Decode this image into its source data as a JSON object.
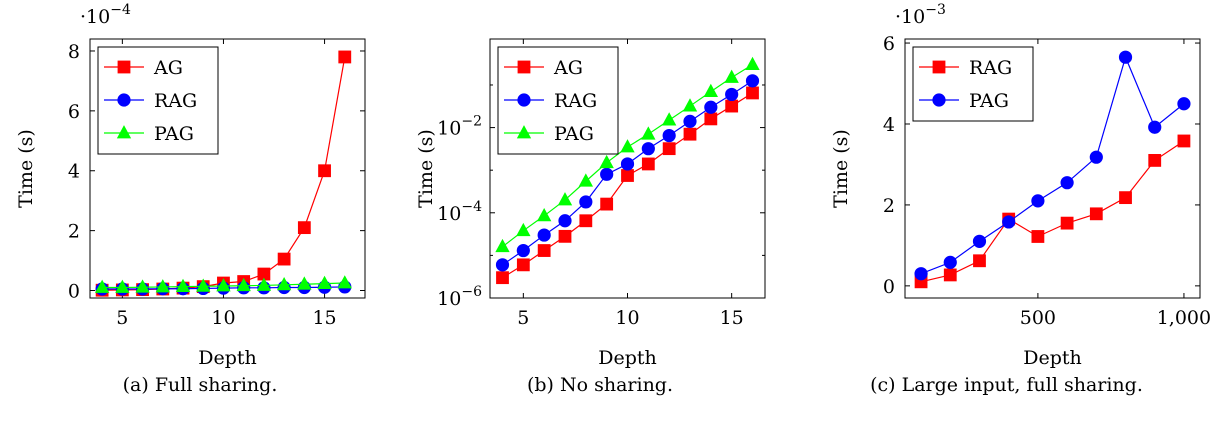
{
  "chart_data": [
    {
      "type": "line",
      "caption": "(a) Full sharing.",
      "ylabel": "Time (s)",
      "xlabel": "Depth",
      "y_multiplier": "·10",
      "y_multiplier_exp": "−4",
      "xlim": [
        3.4,
        17
      ],
      "ylim": [
        -0.25,
        8.4
      ],
      "yscale": "linear",
      "xticks": [
        5,
        10,
        15
      ],
      "xtick_labels": [
        "5",
        "10",
        "15"
      ],
      "yticks": [
        0,
        2,
        4,
        6,
        8
      ],
      "ytick_labels": [
        "0",
        "2",
        "4",
        "6",
        "8"
      ],
      "legend_position": "top-left",
      "grid": false,
      "x": [
        4,
        5,
        6,
        7,
        8,
        9,
        10,
        11,
        12,
        13,
        14,
        15,
        16
      ],
      "series": [
        {
          "name": "AG",
          "color": "#ff0000",
          "marker": "square",
          "values": [
            0.01,
            0.02,
            0.03,
            0.05,
            0.08,
            0.13,
            0.25,
            0.3,
            0.55,
            1.05,
            2.1,
            4.0,
            7.8
          ]
        },
        {
          "name": "RAG",
          "color": "#0000ff",
          "marker": "circle",
          "values": [
            0.05,
            0.05,
            0.05,
            0.06,
            0.06,
            0.07,
            0.08,
            0.09,
            0.09,
            0.1,
            0.1,
            0.11,
            0.12
          ]
        },
        {
          "name": "PAG",
          "color": "#00ff00",
          "marker": "triangle",
          "values": [
            0.1,
            0.1,
            0.11,
            0.12,
            0.13,
            0.14,
            0.15,
            0.16,
            0.17,
            0.19,
            0.21,
            0.23,
            0.25
          ]
        }
      ]
    },
    {
      "type": "line",
      "caption": "(b) No sharing.",
      "ylabel": "Time (s)",
      "xlabel": "Depth",
      "xlim": [
        3.4,
        16.6
      ],
      "ylim": [
        1e-06,
        1.2
      ],
      "yscale": "log",
      "xticks": [
        5,
        10,
        15
      ],
      "xtick_labels": [
        "5",
        "10",
        "15"
      ],
      "yticks": [
        1e-06,
        0.0001,
        0.01
      ],
      "ytick_labels_base": "10",
      "ytick_labels_exp": [
        "−6",
        "−4",
        "−2"
      ],
      "legend_position": "top-left",
      "grid": false,
      "x": [
        4,
        5,
        6,
        7,
        8,
        9,
        10,
        11,
        12,
        13,
        14,
        15,
        16
      ],
      "series": [
        {
          "name": "AG",
          "color": "#ff0000",
          "marker": "square",
          "values": [
            3e-06,
            6e-06,
            1.3e-05,
            2.8e-05,
            6.5e-05,
            0.00016,
            0.00075,
            0.0014,
            0.0032,
            0.007,
            0.016,
            0.032,
            0.065
          ]
        },
        {
          "name": "RAG",
          "color": "#0000ff",
          "marker": "circle",
          "values": [
            6e-06,
            1.3e-05,
            3e-05,
            6.5e-05,
            0.00018,
            0.0008,
            0.0014,
            0.0032,
            0.0065,
            0.014,
            0.03,
            0.06,
            0.125
          ]
        },
        {
          "name": "PAG",
          "color": "#00ff00",
          "marker": "triangle",
          "values": [
            1.6e-05,
            3.8e-05,
            8.5e-05,
            0.0002,
            0.00055,
            0.0015,
            0.0035,
            0.007,
            0.015,
            0.032,
            0.07,
            0.15,
            0.3
          ]
        }
      ]
    },
    {
      "type": "line",
      "caption": "(c) Large input, full sharing.",
      "ylabel": "Time (s)",
      "xlabel": "Depth",
      "y_multiplier": "·10",
      "y_multiplier_exp": "−3",
      "xlim": [
        45,
        1055
      ],
      "ylim": [
        -0.3,
        6.1
      ],
      "yscale": "linear",
      "xticks": [
        500,
        1000
      ],
      "xtick_labels": [
        "500",
        "1,000"
      ],
      "yticks": [
        0,
        2,
        4,
        6
      ],
      "ytick_labels": [
        "0",
        "2",
        "4",
        "6"
      ],
      "legend_position": "top-left",
      "grid": false,
      "x": [
        100,
        200,
        300,
        400,
        500,
        600,
        700,
        800,
        900,
        1000
      ],
      "series": [
        {
          "name": "RAG",
          "color": "#ff0000",
          "marker": "square",
          "values": [
            0.1,
            0.27,
            0.62,
            1.65,
            1.22,
            1.55,
            1.78,
            2.18,
            3.1,
            3.58
          ]
        },
        {
          "name": "PAG",
          "color": "#0000ff",
          "marker": "circle",
          "values": [
            0.3,
            0.58,
            1.1,
            1.58,
            2.1,
            2.55,
            3.18,
            5.65,
            3.92,
            4.5
          ]
        }
      ]
    }
  ]
}
